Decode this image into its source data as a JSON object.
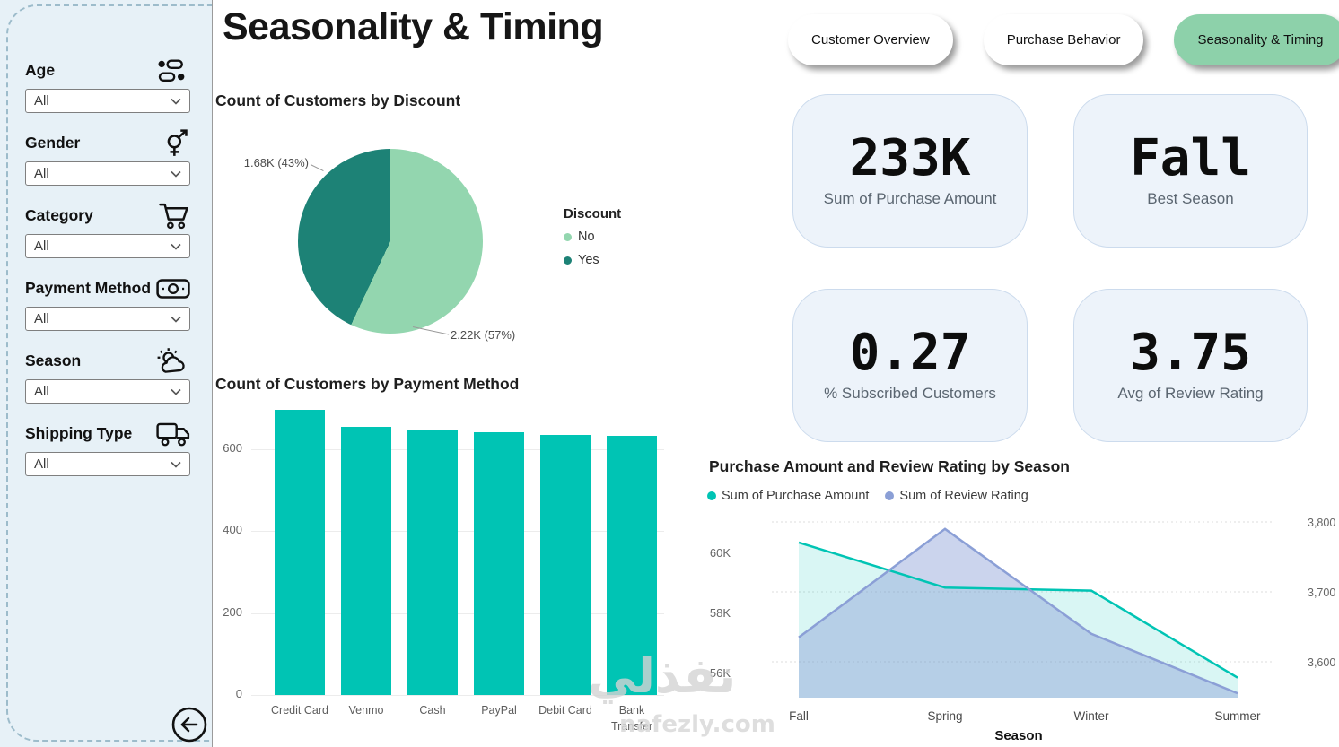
{
  "header": {
    "title": "Seasonality & Timing",
    "tabs": [
      {
        "label": "Customer Overview",
        "active": false
      },
      {
        "label": "Purchase Behavior",
        "active": false
      },
      {
        "label": "Seasonality & Timing",
        "active": true
      }
    ]
  },
  "sidebar": {
    "filters": [
      {
        "label": "Age",
        "icon": "people-icon",
        "value": "All"
      },
      {
        "label": "Gender",
        "icon": "gender-icon",
        "value": "All"
      },
      {
        "label": "Category",
        "icon": "cart-icon",
        "value": "All"
      },
      {
        "label": "Payment Method",
        "icon": "money-icon",
        "value": "All"
      },
      {
        "label": "Season",
        "icon": "sun-cloud-icon",
        "value": "All"
      },
      {
        "label": "Shipping Type",
        "icon": "truck-icon",
        "value": "All"
      }
    ]
  },
  "kpis": [
    {
      "value": "233K",
      "label": "Sum of Purchase Amount"
    },
    {
      "value": "Fall",
      "label": "Best Season"
    },
    {
      "value": "0.27",
      "label": "% Subscribed Customers"
    },
    {
      "value": "3.75",
      "label": "Avg of Review Rating"
    }
  ],
  "watermark": {
    "line1": "نفذلي",
    "line2": "nafezly.com"
  },
  "colors": {
    "teal": "#00c4b4",
    "pie_light": "#93d6af",
    "pie_dark": "#1d8276",
    "periwinkle": "#8b9fd6",
    "active_tab": "#8dd1aa"
  },
  "chart_data": [
    {
      "type": "pie",
      "title": "Count of Customers by Discount",
      "legend_title": "Discount",
      "slices": [
        {
          "label": "No",
          "value": 2220,
          "percent": 57,
          "display": "2.22K (57%)",
          "color": "#93d6af"
        },
        {
          "label": "Yes",
          "value": 1680,
          "percent": 43,
          "display": "1.68K (43%)",
          "color": "#1d8276"
        }
      ]
    },
    {
      "type": "bar",
      "title": "Count of Customers by Payment Method",
      "categories": [
        "Credit Card",
        "Venmo",
        "Cash",
        "PayPal",
        "Debit Card",
        "Bank Transfer"
      ],
      "values": [
        695,
        655,
        648,
        640,
        634,
        633
      ],
      "ylim": [
        0,
        700
      ],
      "yticks": [
        0,
        200,
        400,
        600
      ],
      "bar_color": "#00c4b4",
      "xlabel": "",
      "ylabel": ""
    },
    {
      "type": "area",
      "title": "Purchase Amount and Review Rating by Season",
      "categories": [
        "Fall",
        "Spring",
        "Winter",
        "Summer"
      ],
      "xlabel": "Season",
      "series": [
        {
          "name": "Sum of Purchase Amount",
          "color": "#00c4b4",
          "axis": "left",
          "values": [
            60300,
            58800,
            58700,
            55800
          ]
        },
        {
          "name": "Sum of Review Rating",
          "color": "#8b9fd6",
          "axis": "right",
          "values": [
            3635,
            3790,
            3640,
            3555
          ]
        }
      ],
      "left_axis": {
        "ticks": [
          "60K",
          "58K",
          "56K"
        ],
        "range": [
          55000,
          61000
        ]
      },
      "right_axis": {
        "ticks": [
          "3,800",
          "3,700",
          "3,600"
        ],
        "range": [
          3500,
          3850
        ]
      },
      "legend_position": "top"
    }
  ]
}
